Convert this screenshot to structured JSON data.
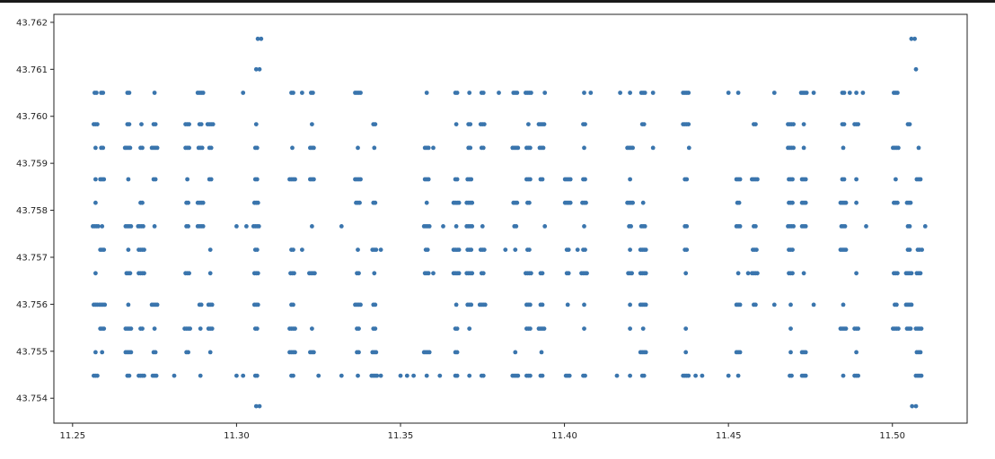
{
  "chart_data": {
    "type": "scatter",
    "title": "",
    "xlabel": "",
    "ylabel": "",
    "xlim": [
      11.2443,
      11.5228
    ],
    "ylim": [
      43.75347,
      43.76217
    ],
    "grid": false,
    "legend": "none",
    "x_ticks": [
      "11.25",
      "11.30",
      "11.35",
      "11.40",
      "11.45",
      "11.50"
    ],
    "y_ticks": [
      "43.754",
      "43.755",
      "43.756",
      "43.757",
      "43.758",
      "43.759",
      "43.760",
      "43.761",
      "43.762"
    ],
    "series": [
      {
        "color": "#3a75ad",
        "rows": [
          43.75448,
          43.75498,
          43.75548,
          43.75599,
          43.75666,
          43.75716,
          43.75766,
          43.75816,
          43.75866,
          43.75933,
          43.75983,
          43.7605
        ],
        "columns": [
          11.257,
          11.259,
          11.267,
          11.271,
          11.275,
          11.285,
          11.289,
          11.292,
          11.306,
          11.317,
          11.323,
          11.337,
          11.342,
          11.358,
          11.367,
          11.371,
          11.375,
          11.385,
          11.389,
          11.393,
          11.401,
          11.406,
          11.42,
          11.424,
          11.437,
          11.453,
          11.458,
          11.469,
          11.473,
          11.485,
          11.489,
          11.501,
          11.505,
          11.508
        ],
        "extra_points": [
          [
            11.3075,
            43.76165
          ],
          [
            11.3065,
            43.76165
          ],
          [
            11.307,
            43.761
          ],
          [
            11.306,
            43.761
          ],
          [
            11.307,
            43.75383
          ],
          [
            11.306,
            43.75383
          ],
          [
            11.5058,
            43.76165
          ],
          [
            11.5068,
            43.76165
          ],
          [
            11.5072,
            43.761
          ],
          [
            11.506,
            43.75383
          ],
          [
            11.5072,
            43.75383
          ],
          [
            11.3,
            43.75766
          ],
          [
            11.303,
            43.75766
          ],
          [
            11.302,
            43.7605
          ],
          [
            11.3,
            43.75448
          ],
          [
            11.302,
            43.75448
          ],
          [
            11.354,
            43.75448
          ],
          [
            11.352,
            43.75448
          ],
          [
            11.35,
            43.75448
          ],
          [
            11.325,
            43.75448
          ],
          [
            11.32,
            43.75716
          ],
          [
            11.32,
            43.7605
          ],
          [
            11.442,
            43.75448
          ],
          [
            11.44,
            43.75448
          ],
          [
            11.45,
            43.75448
          ],
          [
            11.332,
            43.75448
          ],
          [
            11.332,
            43.75766
          ],
          [
            11.362,
            43.75448
          ],
          [
            11.363,
            43.75766
          ],
          [
            11.382,
            43.75716
          ],
          [
            11.38,
            43.7605
          ],
          [
            11.416,
            43.75448
          ],
          [
            11.417,
            43.7605
          ],
          [
            11.45,
            43.7605
          ],
          [
            11.464,
            43.7605
          ],
          [
            11.476,
            43.7605
          ],
          [
            11.487,
            43.7605
          ],
          [
            11.491,
            43.7605
          ],
          [
            11.51,
            43.75766
          ],
          [
            11.509,
            43.75716
          ],
          [
            11.492,
            43.75766
          ],
          [
            11.476,
            43.75599
          ],
          [
            11.464,
            43.75599
          ],
          [
            11.456,
            43.75666
          ],
          [
            11.438,
            43.75933
          ],
          [
            11.427,
            43.75933
          ],
          [
            11.427,
            43.7605
          ],
          [
            11.408,
            43.7605
          ],
          [
            11.404,
            43.75716
          ],
          [
            11.394,
            43.75766
          ],
          [
            11.394,
            43.7605
          ],
          [
            11.36,
            43.75933
          ],
          [
            11.36,
            43.75666
          ],
          [
            11.344,
            43.75448
          ],
          [
            11.344,
            43.75716
          ],
          [
            11.281,
            43.75448
          ],
          [
            11.27,
            43.75766
          ],
          [
            11.266,
            43.75933
          ]
        ]
      }
    ]
  }
}
